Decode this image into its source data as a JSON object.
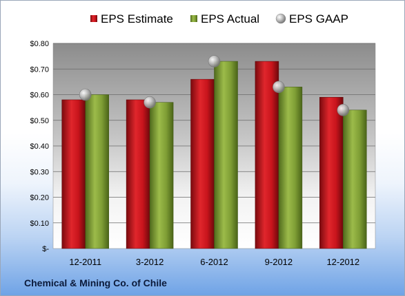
{
  "company": "Chemical & Mining Co. of Chile",
  "chart_data": {
    "type": "bar",
    "categories": [
      "12-2011",
      "3-2012",
      "6-2012",
      "9-2012",
      "12-2012"
    ],
    "series": [
      {
        "name": "EPS Estimate",
        "type": "bar",
        "color": "#c8141c",
        "values": [
          0.58,
          0.58,
          0.66,
          0.73,
          0.59
        ]
      },
      {
        "name": "EPS Actual",
        "type": "bar",
        "color": "#7f9e35",
        "values": [
          0.6,
          0.57,
          0.73,
          0.63,
          0.54
        ]
      },
      {
        "name": "EPS GAAP",
        "type": "marker",
        "color": "#a9a9a9",
        "values": [
          0.6,
          0.57,
          0.73,
          0.63,
          0.54
        ]
      }
    ],
    "ylim": [
      0,
      0.8
    ],
    "yticks": [
      0,
      0.1,
      0.2,
      0.3,
      0.4,
      0.5,
      0.6,
      0.7,
      0.8
    ],
    "ytick_labels": [
      "$-",
      "$0.10",
      "$0.20",
      "$0.30",
      "$0.40",
      "$0.50",
      "$0.60",
      "$0.70",
      "$0.80"
    ],
    "legend_position": "top",
    "grid": true
  }
}
